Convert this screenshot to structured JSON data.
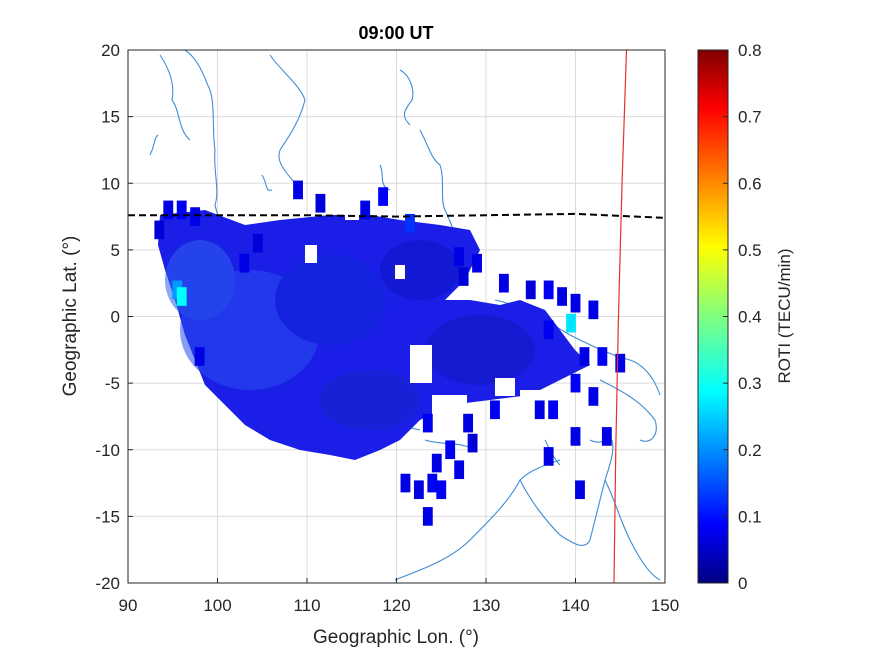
{
  "chart_data": {
    "type": "heatmap",
    "title": "09:00 UT",
    "xlabel": "Geographic Lon. (°)",
    "ylabel": "Geographic Lat. (°)",
    "xlim": [
      90,
      150
    ],
    "ylim": [
      -20,
      20
    ],
    "xticks": [
      90,
      100,
      110,
      120,
      130,
      140,
      150
    ],
    "xtick_labels": [
      "90",
      "100",
      "110",
      "120",
      "130",
      "140",
      "150"
    ],
    "yticks": [
      -20,
      -15,
      -10,
      -5,
      0,
      5,
      10,
      15,
      20
    ],
    "ytick_labels": [
      "-20",
      "-15",
      "-10",
      "-5",
      "0",
      "5",
      "10",
      "15",
      "20"
    ],
    "grid": true,
    "colorbar": {
      "label": "ROTI (TECU/min)",
      "range": [
        0,
        0.8
      ],
      "ticks": [
        0,
        0.1,
        0.2,
        0.3,
        0.4,
        0.5,
        0.6,
        0.7,
        0.8
      ],
      "tick_labels": [
        "0",
        "0.1",
        "0.2",
        "0.3",
        "0.4",
        "0.5",
        "0.6",
        "0.7",
        "0.8"
      ],
      "colormap": "jet"
    },
    "dense_regions": [
      {
        "lon_range": [
          93,
          120
        ],
        "lat_range": [
          -10.5,
          8
        ],
        "roti": 0.09
      },
      {
        "lon_range": [
          100,
          129
        ],
        "lat_range": [
          -8,
          7.5
        ],
        "roti": 0.08
      },
      {
        "lon_range": [
          120,
          141
        ],
        "lat_range": [
          -9,
          3
        ],
        "roti": 0.07
      }
    ],
    "roti_cells": [
      {
        "lon": 94.5,
        "lat": 8,
        "roti": 0.08
      },
      {
        "lon": 96,
        "lat": 8,
        "roti": 0.09
      },
      {
        "lon": 97.5,
        "lat": 7.5,
        "roti": 0.08
      },
      {
        "lon": 93.5,
        "lat": 6.5,
        "roti": 0.07
      },
      {
        "lon": 95.5,
        "lat": 2,
        "roti": 0.22
      },
      {
        "lon": 96,
        "lat": 1.5,
        "roti": 0.3
      },
      {
        "lon": 98,
        "lat": -3,
        "roti": 0.08
      },
      {
        "lon": 109,
        "lat": 9.5,
        "roti": 0.08
      },
      {
        "lon": 111.5,
        "lat": 8.5,
        "roti": 0.07
      },
      {
        "lon": 116.5,
        "lat": 8,
        "roti": 0.08
      },
      {
        "lon": 118.5,
        "lat": 9,
        "roti": 0.1
      },
      {
        "lon": 121.5,
        "lat": 7,
        "roti": 0.14
      },
      {
        "lon": 104.5,
        "lat": 5.5,
        "roti": 0.07
      },
      {
        "lon": 103,
        "lat": 4,
        "roti": 0.08
      },
      {
        "lon": 127,
        "lat": 4.5,
        "roti": 0.08
      },
      {
        "lon": 129,
        "lat": 4,
        "roti": 0.08
      },
      {
        "lon": 127.5,
        "lat": 3,
        "roti": 0.07
      },
      {
        "lon": 132,
        "lat": 2.5,
        "roti": 0.08
      },
      {
        "lon": 135,
        "lat": 2,
        "roti": 0.07
      },
      {
        "lon": 137,
        "lat": 2,
        "roti": 0.09
      },
      {
        "lon": 138.5,
        "lat": 1.5,
        "roti": 0.08
      },
      {
        "lon": 140,
        "lat": 1,
        "roti": 0.08
      },
      {
        "lon": 142,
        "lat": 0.5,
        "roti": 0.08
      },
      {
        "lon": 139.5,
        "lat": -0.5,
        "roti": 0.28
      },
      {
        "lon": 137,
        "lat": -1,
        "roti": 0.09
      },
      {
        "lon": 141,
        "lat": -3,
        "roti": 0.08
      },
      {
        "lon": 143,
        "lat": -3,
        "roti": 0.09
      },
      {
        "lon": 145,
        "lat": -3.5,
        "roti": 0.08
      },
      {
        "lon": 140,
        "lat": -5,
        "roti": 0.09
      },
      {
        "lon": 142,
        "lat": -6,
        "roti": 0.08
      },
      {
        "lon": 136,
        "lat": -7,
        "roti": 0.08
      },
      {
        "lon": 137.5,
        "lat": -7,
        "roti": 0.09
      },
      {
        "lon": 131,
        "lat": -7,
        "roti": 0.09
      },
      {
        "lon": 128,
        "lat": -8,
        "roti": 0.08
      },
      {
        "lon": 123.5,
        "lat": -8,
        "roti": 0.09
      },
      {
        "lon": 140,
        "lat": -9,
        "roti": 0.08
      },
      {
        "lon": 143.5,
        "lat": -9,
        "roti": 0.08
      },
      {
        "lon": 137,
        "lat": -10.5,
        "roti": 0.08
      },
      {
        "lon": 128.5,
        "lat": -9.5,
        "roti": 0.07
      },
      {
        "lon": 126,
        "lat": -10,
        "roti": 0.09
      },
      {
        "lon": 124.5,
        "lat": -11,
        "roti": 0.08
      },
      {
        "lon": 127,
        "lat": -11.5,
        "roti": 0.08
      },
      {
        "lon": 121,
        "lat": -12.5,
        "roti": 0.08
      },
      {
        "lon": 124,
        "lat": -12.5,
        "roti": 0.09
      },
      {
        "lon": 122.5,
        "lat": -13,
        "roti": 0.08
      },
      {
        "lon": 125,
        "lat": -13,
        "roti": 0.09
      },
      {
        "lon": 123.5,
        "lat": -15,
        "roti": 0.08
      },
      {
        "lon": 140.5,
        "lat": -13,
        "roti": 0.08
      }
    ],
    "overlays": [
      {
        "kind": "magnetic equator",
        "style": "black dashed",
        "points": [
          [
            90,
            7.6
          ],
          [
            100,
            7.6
          ],
          [
            110,
            7.6
          ],
          [
            120,
            7.5
          ],
          [
            130,
            7.6
          ],
          [
            140,
            7.7
          ],
          [
            150,
            7.4
          ]
        ]
      },
      {
        "kind": "meridian",
        "style": "red solid",
        "points": [
          [
            145.7,
            20
          ],
          [
            145.2,
            10
          ],
          [
            144.8,
            0
          ],
          [
            144.5,
            -10
          ],
          [
            144.3,
            -20
          ]
        ]
      }
    ]
  },
  "colors": {
    "coastline": "#3f8cd6",
    "grid": "#dcdcdc",
    "magnetic_equator": "#000000",
    "meridian": "#e8302a"
  }
}
